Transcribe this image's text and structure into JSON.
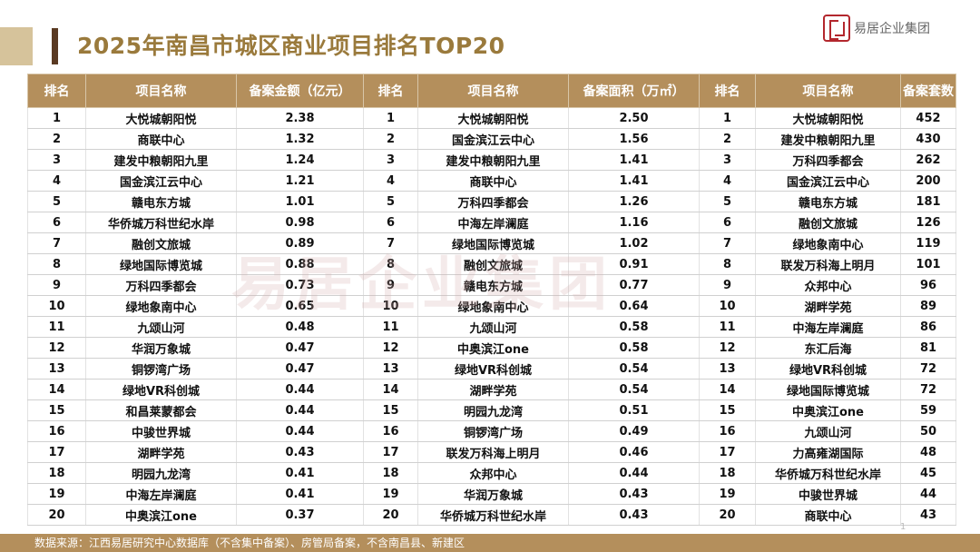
{
  "title": "2025年南昌市城区商业项目排名TOP20",
  "logo": {
    "text": "易居企业集团",
    "seal_icon": "yiju-seal-logo-icon"
  },
  "watermark": "易居企业集团",
  "table": {
    "headers": [
      "排名",
      "项目名称",
      "备案金额（亿元）",
      "排名",
      "项目名称",
      "备案面积（万㎡）",
      "排名",
      "项目名称",
      "备案套数"
    ],
    "rows": [
      [
        "1",
        "大悦城朝阳悦",
        "2.38",
        "1",
        "大悦城朝阳悦",
        "2.50",
        "1",
        "大悦城朝阳悦",
        "452"
      ],
      [
        "2",
        "商联中心",
        "1.32",
        "2",
        "国金滨江云中心",
        "1.56",
        "2",
        "建发中粮朝阳九里",
        "430"
      ],
      [
        "3",
        "建发中粮朝阳九里",
        "1.24",
        "3",
        "建发中粮朝阳九里",
        "1.41",
        "3",
        "万科四季都会",
        "262"
      ],
      [
        "4",
        "国金滨江云中心",
        "1.21",
        "4",
        "商联中心",
        "1.41",
        "4",
        "国金滨江云中心",
        "200"
      ],
      [
        "5",
        "赣电东方城",
        "1.01",
        "5",
        "万科四季都会",
        "1.26",
        "5",
        "赣电东方城",
        "181"
      ],
      [
        "6",
        "华侨城万科世纪水岸",
        "0.98",
        "6",
        "中海左岸澜庭",
        "1.16",
        "6",
        "融创文旅城",
        "126"
      ],
      [
        "7",
        "融创文旅城",
        "0.89",
        "7",
        "绿地国际博览城",
        "1.02",
        "7",
        "绿地象南中心",
        "119"
      ],
      [
        "8",
        "绿地国际博览城",
        "0.88",
        "8",
        "融创文旅城",
        "0.91",
        "8",
        "联发万科海上明月",
        "101"
      ],
      [
        "9",
        "万科四季都会",
        "0.73",
        "9",
        "赣电东方城",
        "0.77",
        "9",
        "众邦中心",
        "96"
      ],
      [
        "10",
        "绿地象南中心",
        "0.65",
        "10",
        "绿地象南中心",
        "0.64",
        "10",
        "湖畔学苑",
        "89"
      ],
      [
        "11",
        "九颂山河",
        "0.48",
        "11",
        "九颂山河",
        "0.58",
        "11",
        "中海左岸澜庭",
        "86"
      ],
      [
        "12",
        "华润万象城",
        "0.47",
        "12",
        "中奥滨江one",
        "0.58",
        "12",
        "东汇后海",
        "81"
      ],
      [
        "13",
        "铜锣湾广场",
        "0.47",
        "13",
        "绿地VR科创城",
        "0.54",
        "13",
        "绿地VR科创城",
        "72"
      ],
      [
        "14",
        "绿地VR科创城",
        "0.44",
        "14",
        "湖畔学苑",
        "0.54",
        "14",
        "绿地国际博览城",
        "72"
      ],
      [
        "15",
        "和昌莱蒙都会",
        "0.44",
        "15",
        "明园九龙湾",
        "0.51",
        "15",
        "中奥滨江one",
        "59"
      ],
      [
        "16",
        "中骏世界城",
        "0.44",
        "16",
        "铜锣湾广场",
        "0.49",
        "16",
        "九颂山河",
        "50"
      ],
      [
        "17",
        "湖畔学苑",
        "0.43",
        "17",
        "联发万科海上明月",
        "0.46",
        "17",
        "力高雍湖国际",
        "48"
      ],
      [
        "18",
        "明园九龙湾",
        "0.41",
        "18",
        "众邦中心",
        "0.44",
        "18",
        "华侨城万科世纪水岸",
        "45"
      ],
      [
        "19",
        "中海左岸澜庭",
        "0.41",
        "19",
        "华润万象城",
        "0.43",
        "19",
        "中骏世界城",
        "44"
      ],
      [
        "20",
        "中奥滨江one",
        "0.37",
        "20",
        "华侨城万科世纪水岸",
        "0.43",
        "20",
        "商联中心",
        "43"
      ]
    ]
  },
  "page_number": "1",
  "footer": "数据来源：江西易居研究中心数据库（不含集中备案）、房管局备案，不含南昌县、新建区",
  "colors": {
    "header_bg": "#b48f5c",
    "title_text": "#9a7a3c",
    "title_bar": "#d6c39b",
    "accent_mark": "#5a3a22",
    "seal_red": "#b3272d"
  }
}
